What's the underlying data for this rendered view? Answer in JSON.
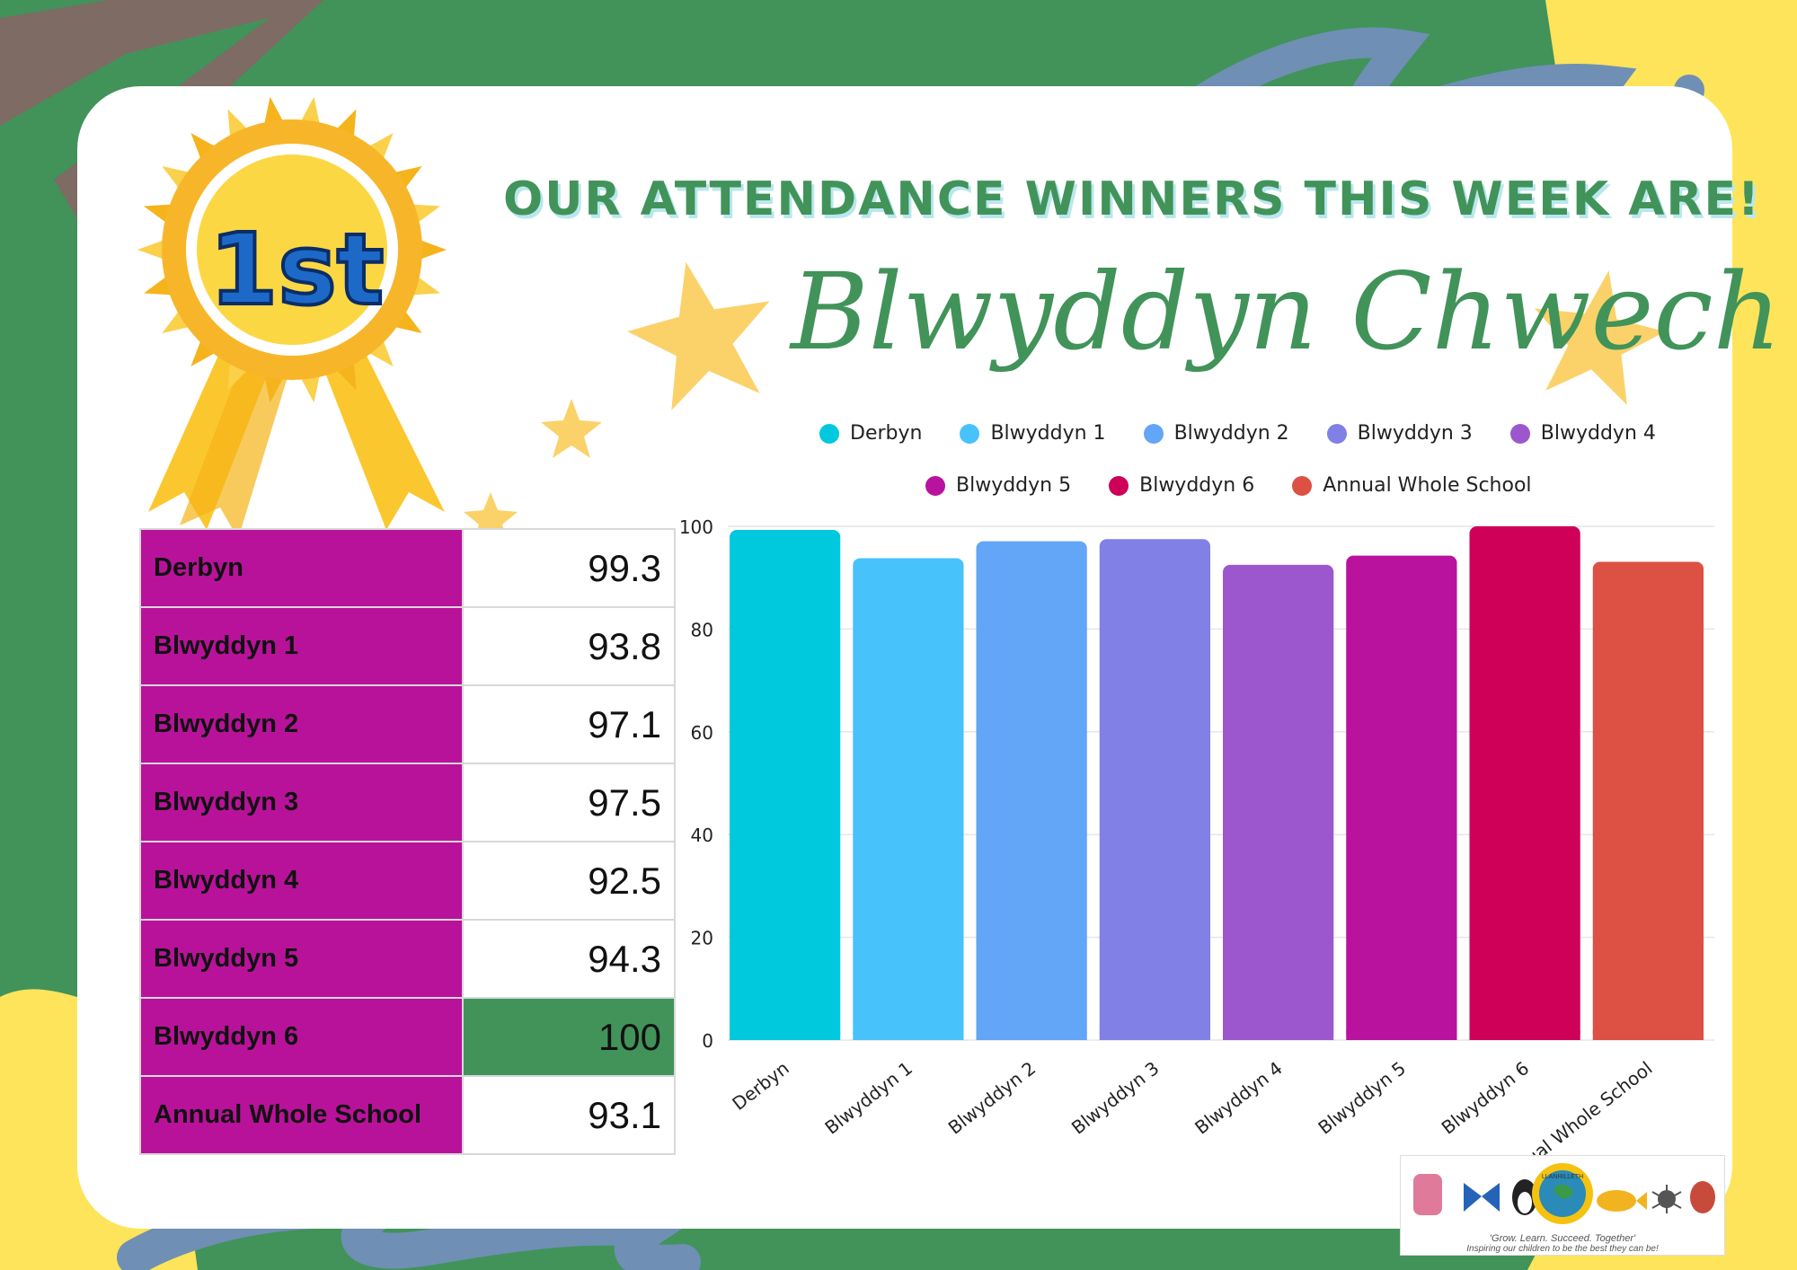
{
  "header": {
    "headline": "OUR ATTENDANCE WINNERS THIS WEEK ARE!",
    "winner": "Blwyddyn Chwech"
  },
  "ribbon": {
    "text": "1st",
    "icon": "rosette-icon"
  },
  "table": {
    "rows": [
      {
        "name": "Derbyn",
        "value": "99.3"
      },
      {
        "name": "Blwyddyn 1",
        "value": "93.8"
      },
      {
        "name": "Blwyddyn 2",
        "value": "97.1"
      },
      {
        "name": "Blwyddyn 3",
        "value": "97.5"
      },
      {
        "name": "Blwyddyn 4",
        "value": "92.5"
      },
      {
        "name": "Blwyddyn 5",
        "value": "94.3"
      },
      {
        "name": "Blwyddyn 6",
        "value": "100"
      },
      {
        "name": "Annual Whole School",
        "value": "93.1"
      }
    ],
    "highlight_color": "#41935a",
    "name_cell_color": "#b8129a"
  },
  "chart_data": {
    "type": "bar",
    "categories": [
      "Derbyn",
      "Blwyddyn 1",
      "Blwyddyn 2",
      "Blwyddyn 3",
      "Blwyddyn 4",
      "Blwyddyn 5",
      "Blwyddyn 6",
      "Annual Whole School"
    ],
    "values": [
      99.3,
      93.8,
      97.1,
      97.5,
      92.5,
      94.3,
      100,
      93.1
    ],
    "colors": [
      "#00c9dd",
      "#48c2fb",
      "#63a5f6",
      "#8080e6",
      "#9c57cf",
      "#b9129f",
      "#cf0058",
      "#dd5044"
    ],
    "title": "",
    "xlabel": "",
    "ylabel": "",
    "ylim": [
      0,
      100
    ],
    "yticks": [
      0,
      20,
      40,
      60,
      80,
      100
    ],
    "grid": true,
    "legend": "top"
  },
  "footer": {
    "motto": "'Grow. Learn. Succeed. Together'",
    "tagline": "Inspiring our children to be the best they can be!",
    "seal_label": "LLANHILLETH"
  }
}
